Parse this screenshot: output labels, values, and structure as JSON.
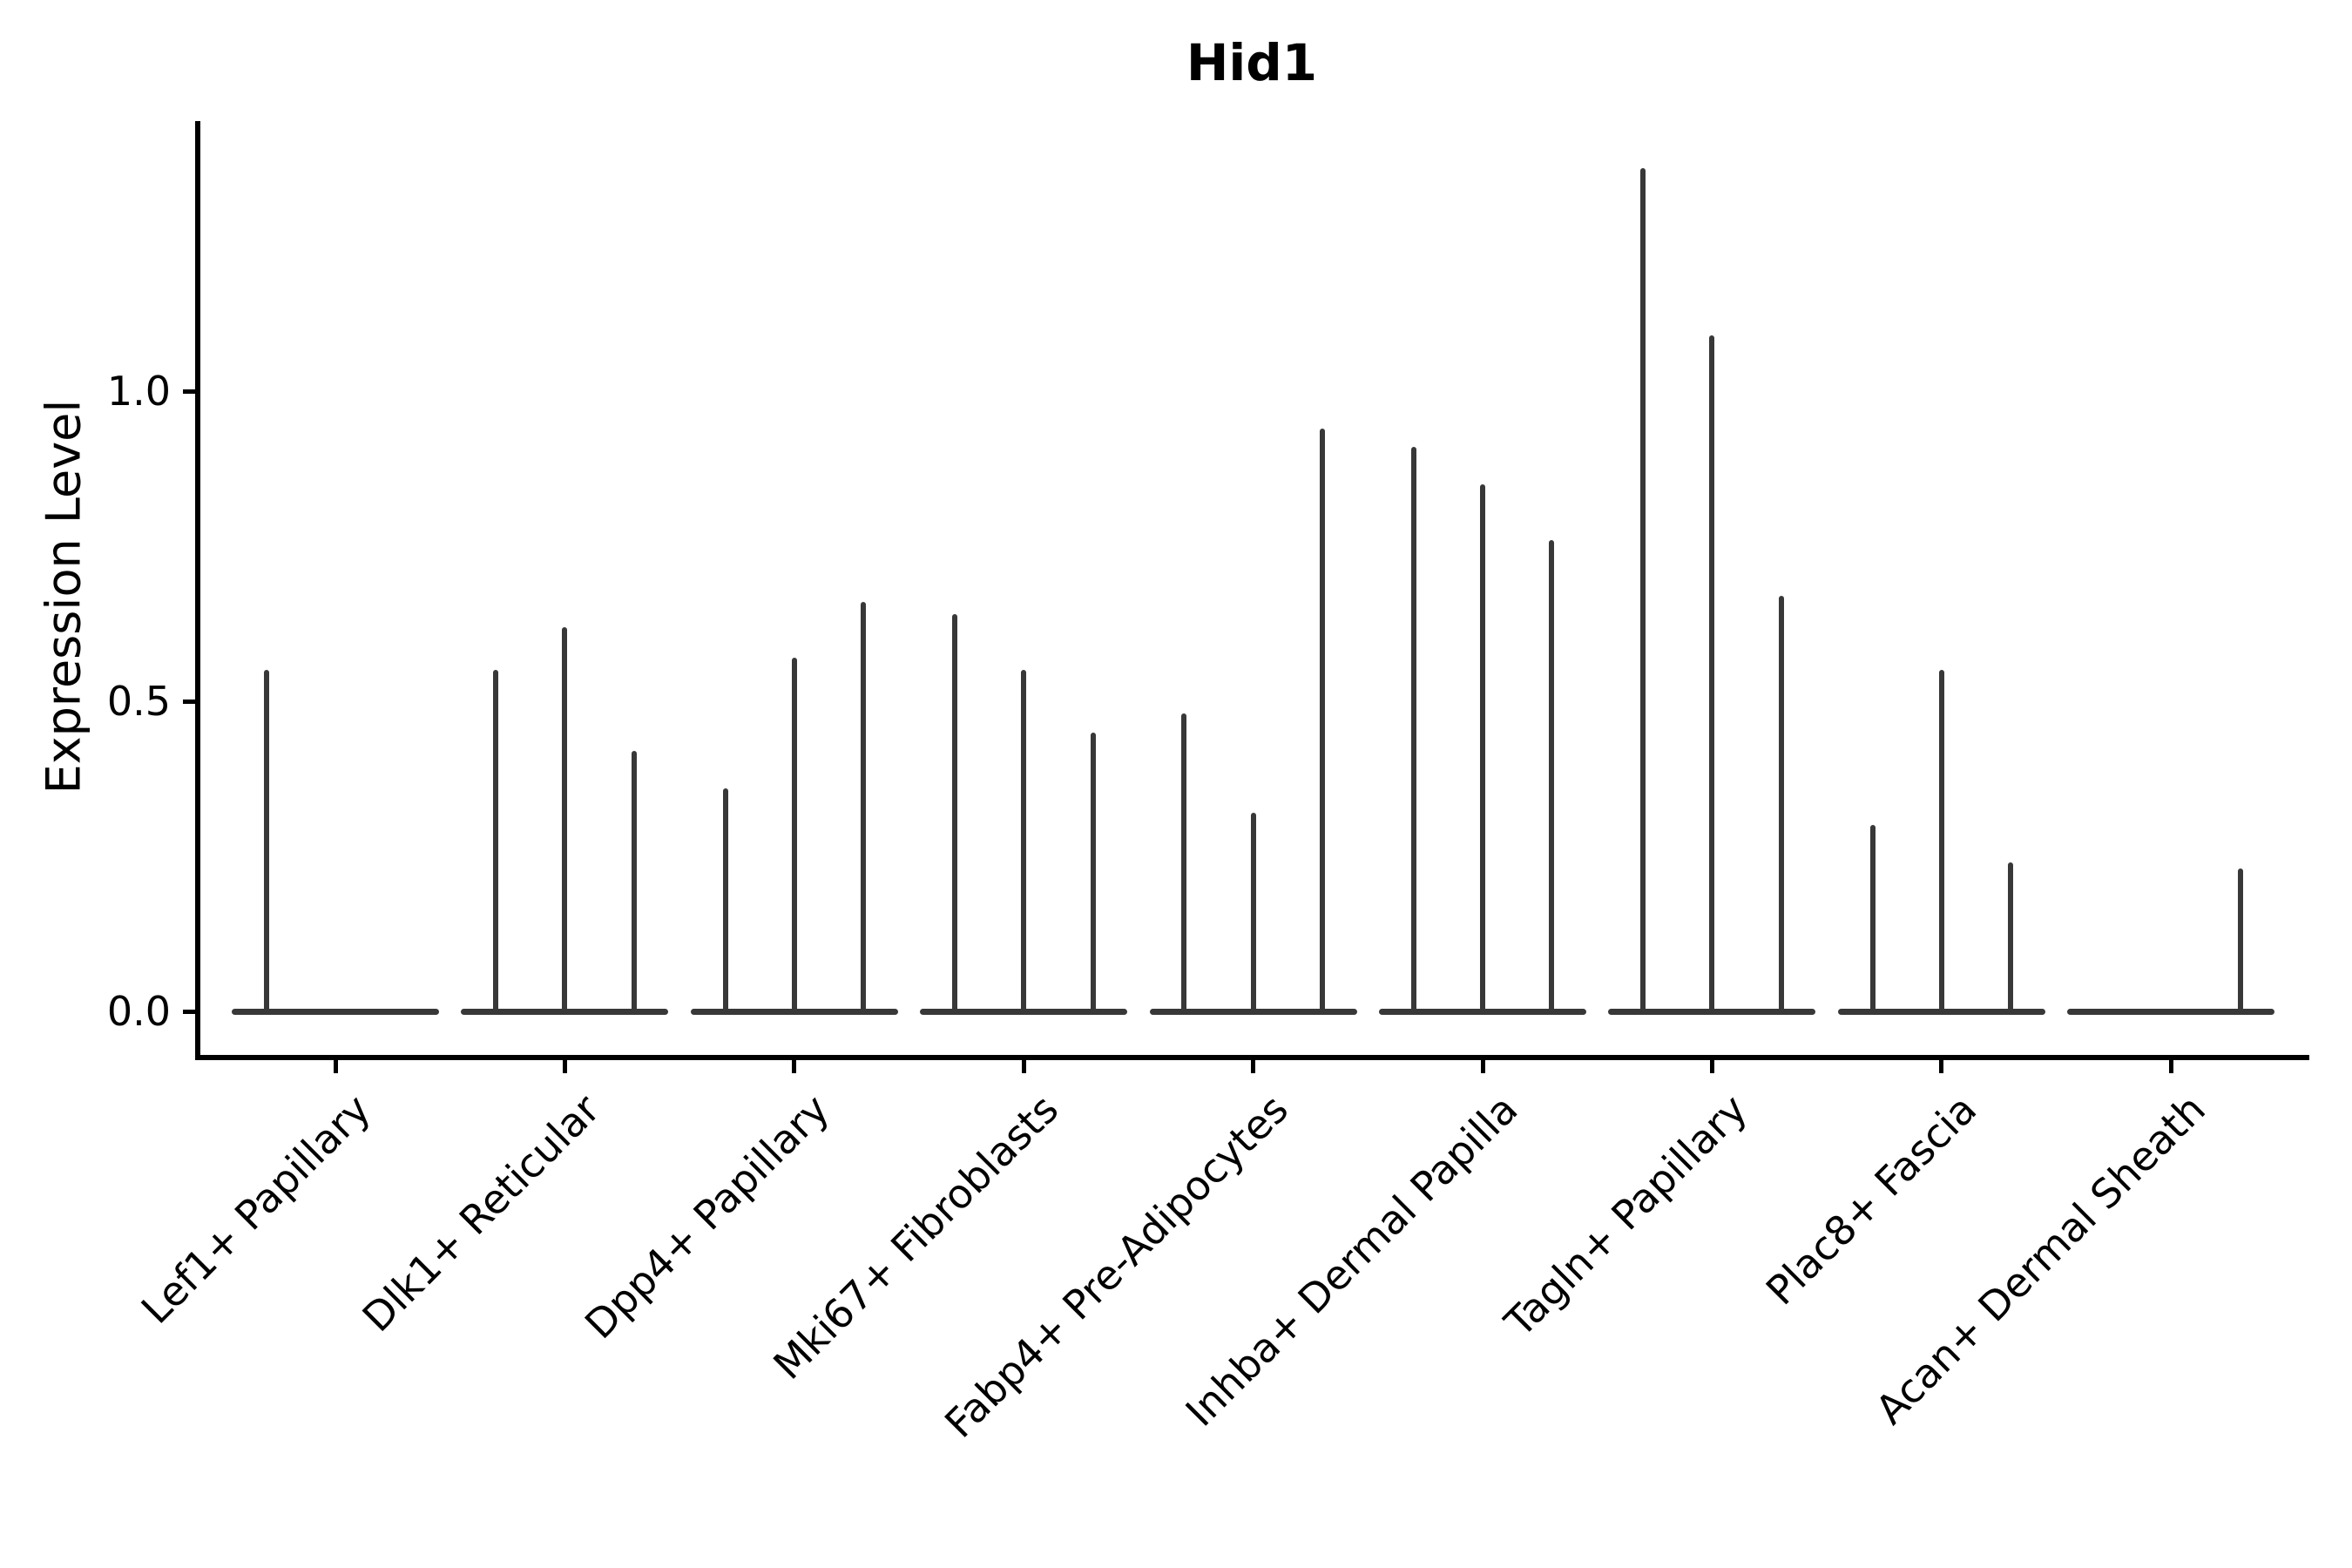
{
  "title": "Hid1",
  "y_axis": {
    "label": "Expression Level",
    "tick_labels": [
      "0.0",
      "0.5",
      "1.0"
    ]
  },
  "chart_data": {
    "type": "violin",
    "title": "Hid1",
    "xlabel": "",
    "ylabel": "Expression Level",
    "ylim": [
      -0.07,
      1.47
    ],
    "yticks": [
      0.0,
      0.5,
      1.0
    ],
    "grid": false,
    "legend": false,
    "violins_per_group": 3,
    "note": "Each group shows 3 ultra-thin violins: a flat base at 0 with a vertical spike reaching the max expression value; 0 means flat (no spike).",
    "categories": [
      "Lef1+ Papillary",
      "Dlk1+ Reticular",
      "Dpp4+ Papillary",
      "Mki67+ Fibroblasts",
      "Fabp4+ Pre-Adipocytes",
      "Inhba+ Dermal Papilla",
      "Tagln+ Papillary",
      "Plac8+ Fascia",
      "Acan+ Dermal Sheath"
    ],
    "series": [
      {
        "name": "Lef1+ Papillary",
        "spike_max_values": [
          0.55,
          0,
          0
        ]
      },
      {
        "name": "Dlk1+ Reticular",
        "spike_max_values": [
          0.55,
          0.62,
          0.42
        ]
      },
      {
        "name": "Dpp4+ Papillary",
        "spike_max_values": [
          0.36,
          0.57,
          0.66
        ]
      },
      {
        "name": "Mki67+ Fibroblasts",
        "spike_max_values": [
          0.64,
          0.55,
          0.45
        ]
      },
      {
        "name": "Fabp4+ Pre-Adipocytes",
        "spike_max_values": [
          0.48,
          0.32,
          0.94
        ]
      },
      {
        "name": "Inhba+ Dermal Papilla",
        "spike_max_values": [
          0.91,
          0.85,
          0.76
        ]
      },
      {
        "name": "Tagln+ Papillary",
        "spike_max_values": [
          1.36,
          1.09,
          0.67
        ]
      },
      {
        "name": "Plac8+ Fascia",
        "spike_max_values": [
          0.3,
          0.55,
          0.24
        ]
      },
      {
        "name": "Acan+ Dermal Sheath",
        "spike_max_values": [
          0,
          0,
          0.23
        ]
      }
    ],
    "colors": {
      "violin_line": "#383838",
      "spine": "#000000",
      "text": "#000000",
      "background": "#ffffff"
    }
  }
}
